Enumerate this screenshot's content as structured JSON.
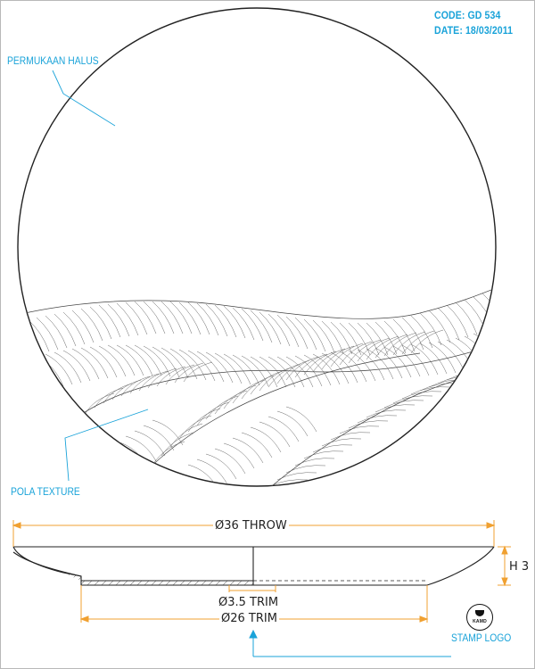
{
  "info": {
    "code": "CODE: GD 534",
    "date": "DATE: 18/03/2011"
  },
  "labels": {
    "permukaan_halus": "PERMUKAAN HALUS",
    "pola_texture": "POLA TEXTURE",
    "stamp_logo": "STAMP LOGO"
  },
  "dimensions": {
    "throw": "Ø36 THROW",
    "height": "H 3",
    "trim_small": "Ø3.5 TRIM",
    "trim_large": "Ø26 TRIM"
  },
  "stamp": {
    "text": "KAMD"
  },
  "colors": {
    "annotation": "#1aa3d9",
    "dimension": "#f0a030",
    "line": "#222222"
  }
}
